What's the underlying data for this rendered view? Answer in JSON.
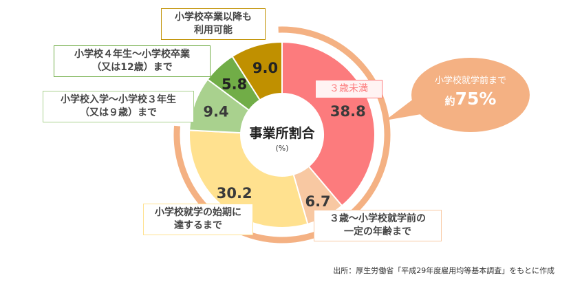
{
  "chart_data": {
    "type": "pie",
    "style": "donut",
    "title": "事業所割合",
    "unit": "(%)",
    "slices": [
      {
        "label": "3歳未満",
        "value": 38.8,
        "color": "#fc7b7d",
        "value_color": "#3a3a3a"
      },
      {
        "label": "3歳～小学校就学前の一定の年齢まで",
        "value": 6.7,
        "color": "#f8c8a2",
        "value_color": "#3a3a3a"
      },
      {
        "label": "小学校就学の始期に達するまで",
        "value": 30.2,
        "color": "#ffe18f",
        "value_color": "#3a3a3a"
      },
      {
        "label": "小学校入学～小学校3年生（又は9歳）まで",
        "value": 9.4,
        "color": "#a9d18e",
        "value_color": "#3a3a3a"
      },
      {
        "label": "小学校4年生～小学校卒業（又は12歳）まで",
        "value": 5.8,
        "color": "#71ad47",
        "value_color": "#222222"
      },
      {
        "label": "小学校卒業以降も利用可能",
        "value": 9.0,
        "color": "#c09000",
        "value_color": "#222222"
      }
    ],
    "ring_color": "#f4b183",
    "ring_group_percent": "75%"
  },
  "labels": {
    "under3": "３歳未満",
    "to_preschool": [
      "３歳～小学校就学前の",
      "一定の年齢まで"
    ],
    "to_school_start": [
      "小学校就学の始期に",
      "達するまで"
    ],
    "to_grade3": [
      "小学校入学～小学校３年生",
      "（又は９歳）まで"
    ],
    "to_grade6": [
      "小学校４年生～小学校卒業",
      "（又は12歳）まで"
    ],
    "after_grad": [
      "小学校卒業以降も",
      "利用可能"
    ]
  },
  "callout": {
    "line1": "小学校就学前まで",
    "prefix": "約",
    "value": "75%"
  },
  "source": "出所：厚生労働省「平成29年度雇用均等基本調査」をもとに作成"
}
